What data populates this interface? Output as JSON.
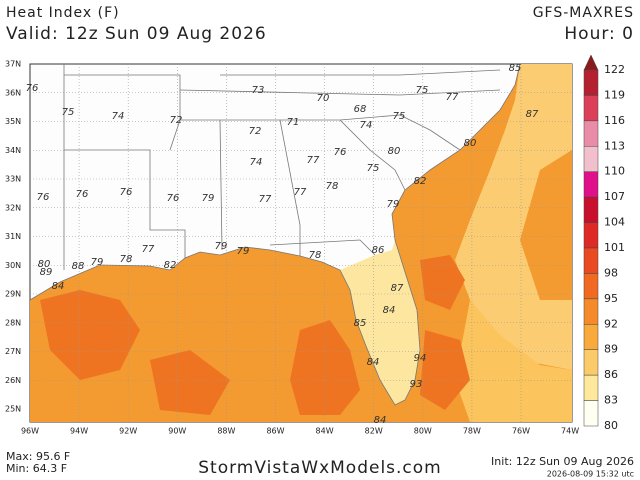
{
  "header": {
    "title": "Heat Index (F)",
    "valid": "Valid: 12z Sun 09 Aug 2026",
    "model": "GFS-MAXRES",
    "hour": "Hour: 0"
  },
  "map": {
    "lat_labels": [
      "37N",
      "36N",
      "35N",
      "34N",
      "33N",
      "32N",
      "31N",
      "30N",
      "29N",
      "28N",
      "27N",
      "26N",
      "25N"
    ],
    "lon_labels": [
      "96W",
      "94W",
      "92W",
      "90W",
      "88W",
      "86W",
      "84W",
      "82W",
      "80W",
      "78W",
      "76W",
      "74W"
    ],
    "station_values": [
      "76",
      "75",
      "74",
      "72",
      "73",
      "70",
      "68",
      "75",
      "77",
      "85",
      "87",
      "72",
      "71",
      "74",
      "75",
      "80",
      "76",
      "80",
      "77",
      "74",
      "75",
      "82",
      "76",
      "76",
      "76",
      "76",
      "79",
      "77",
      "77",
      "78",
      "79",
      "77",
      "79",
      "78",
      "82",
      "79",
      "79",
      "78",
      "86",
      "80",
      "89",
      "88",
      "84",
      "87",
      "84",
      "85",
      "84",
      "94",
      "93",
      "84"
    ]
  },
  "colorbar": {
    "labels": [
      122,
      119,
      116,
      113,
      110,
      107,
      104,
      101,
      98,
      95,
      92,
      89,
      86,
      83,
      80
    ],
    "colors": [
      "#8b1a1a",
      "#b52030",
      "#dc4058",
      "#e88ca8",
      "#f2c0cc",
      "#e0108a",
      "#c8102e",
      "#de2a26",
      "#ea4a22",
      "#f06a22",
      "#f48a2a",
      "#f8aa3c",
      "#fbcb6a",
      "#fde89c",
      "#fffff2"
    ]
  },
  "footer": {
    "max": "Max: 95.6 F",
    "min": "Min: 64.3 F",
    "site": "StormVistaWxModels.com",
    "init": "Init: 12z Sun 09 Aug 2026",
    "timestamp": "2026-08-09 15:32 utc"
  }
}
